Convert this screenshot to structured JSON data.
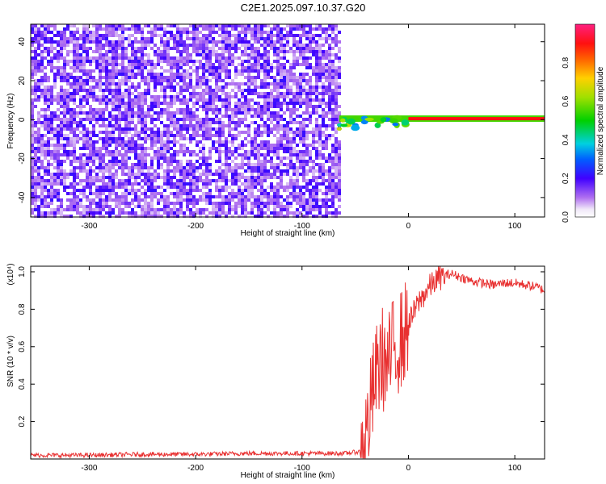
{
  "title": "C2E1.2025.097.10.37.G20",
  "chart_data": [
    {
      "type": "heatmap",
      "xlabel": "Height of straight line (km)",
      "ylabel": "Frequency (Hz)",
      "xlim": [
        -355,
        128
      ],
      "ylim": [
        -50,
        49
      ],
      "xticks": [
        -300,
        -200,
        -100,
        0,
        100
      ],
      "yticks": [
        -40,
        -20,
        0,
        20,
        40
      ],
      "colorbar": {
        "label": "Normalized spectral amplitude",
        "range": [
          0,
          1
        ],
        "ticks": [
          0.0,
          0.2,
          0.4,
          0.6,
          0.8
        ]
      },
      "regions": [
        {
          "name": "noise",
          "x_range": [
            -355,
            -65
          ],
          "freq_range": [
            -50,
            49
          ],
          "amplitude": 0.12
        },
        {
          "name": "transition",
          "x_range": [
            -65,
            0
          ],
          "freq_center_approx": -3,
          "amplitude": 0.4
        },
        {
          "name": "carrier",
          "x_range": [
            0,
            128
          ],
          "freq": 0.5,
          "amplitude": 1.0
        }
      ]
    },
    {
      "type": "line",
      "xlabel": "Height of straight line (km)",
      "ylabel": "SNR (10 * v/v)",
      "y_multiplier": "(x10⁴)",
      "xlim": [
        -355,
        128
      ],
      "ylim": [
        0,
        1.03
      ],
      "xticks": [
        -300,
        -200,
        -100,
        0,
        100
      ],
      "yticks": [
        0.2,
        0.4,
        0.6,
        0.8,
        1.0
      ],
      "series": [
        {
          "color": "#e83030",
          "x": [
            -355,
            -300,
            -250,
            -200,
            -150,
            -100,
            -60,
            -45,
            -40,
            -35,
            -30,
            -25,
            -20,
            -15,
            -10,
            -5,
            0,
            5,
            10,
            15,
            20,
            25,
            30,
            35,
            40,
            50,
            60,
            70,
            80,
            90,
            100,
            110,
            120,
            128
          ],
          "y": [
            0.02,
            0.02,
            0.025,
            0.025,
            0.03,
            0.03,
            0.03,
            0.04,
            0.12,
            0.3,
            0.45,
            0.55,
            0.48,
            0.58,
            0.62,
            0.65,
            0.72,
            0.78,
            0.84,
            0.88,
            0.92,
            0.95,
            0.97,
            0.98,
            0.99,
            0.97,
            0.95,
            0.94,
            0.93,
            0.94,
            0.94,
            0.93,
            0.92,
            0.9
          ]
        }
      ]
    }
  ]
}
